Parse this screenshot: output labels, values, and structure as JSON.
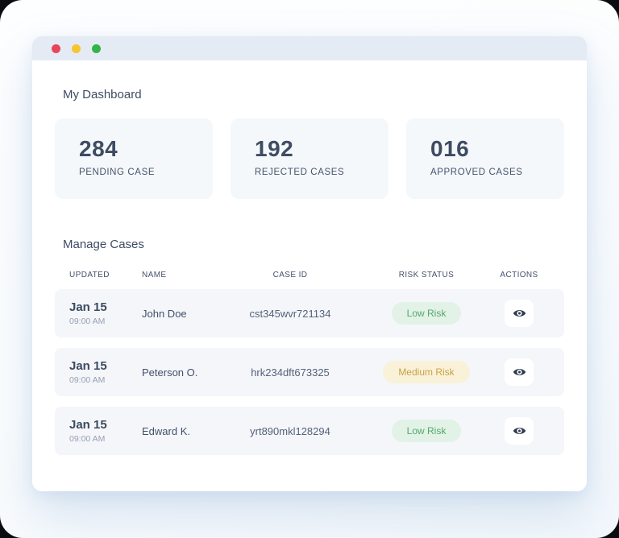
{
  "window": {
    "traffic_lights": [
      "close",
      "minimize",
      "maximize"
    ]
  },
  "dashboard": {
    "title": "My Dashboard",
    "stats": [
      {
        "value": "284",
        "label": "PENDING CASE"
      },
      {
        "value": "192",
        "label": "REJECTED CASES"
      },
      {
        "value": "016",
        "label": "APPROVED CASES"
      }
    ]
  },
  "manage_cases": {
    "title": "Manage Cases",
    "columns": [
      "UPDATED",
      "NAME",
      "CASE ID",
      "RISK STATUS",
      "ACTIONS"
    ],
    "rows": [
      {
        "date": "Jan 15",
        "time": "09:00 AM",
        "name": "John Doe",
        "case_id": "cst345wvr721134",
        "risk_label": "Low Risk",
        "risk_level": "low"
      },
      {
        "date": "Jan 15",
        "time": "09:00 AM",
        "name": "Peterson O.",
        "case_id": "hrk234dft673325",
        "risk_label": "Medium Risk",
        "risk_level": "medium"
      },
      {
        "date": "Jan 15",
        "time": "09:00 AM",
        "name": "Edward K.",
        "case_id": "yrt890mkl128294",
        "risk_label": "Low Risk",
        "risk_level": "low"
      }
    ]
  },
  "colors": {
    "titlebar": "#e4ebf4",
    "traffic_red": "#e8455c",
    "traffic_yellow": "#f7c52f",
    "traffic_green": "#34b349",
    "card_bg": "#f5f8fb",
    "row_bg": "#f4f6fa",
    "text_primary": "#3e4c63",
    "text_muted": "#96a0b2",
    "badge_low_bg": "#e2f2e7",
    "badge_low_text": "#53a86a",
    "badge_medium_bg": "#f9f2d9",
    "badge_medium_text": "#c7a144",
    "eye_icon": "#2f3b4e"
  }
}
